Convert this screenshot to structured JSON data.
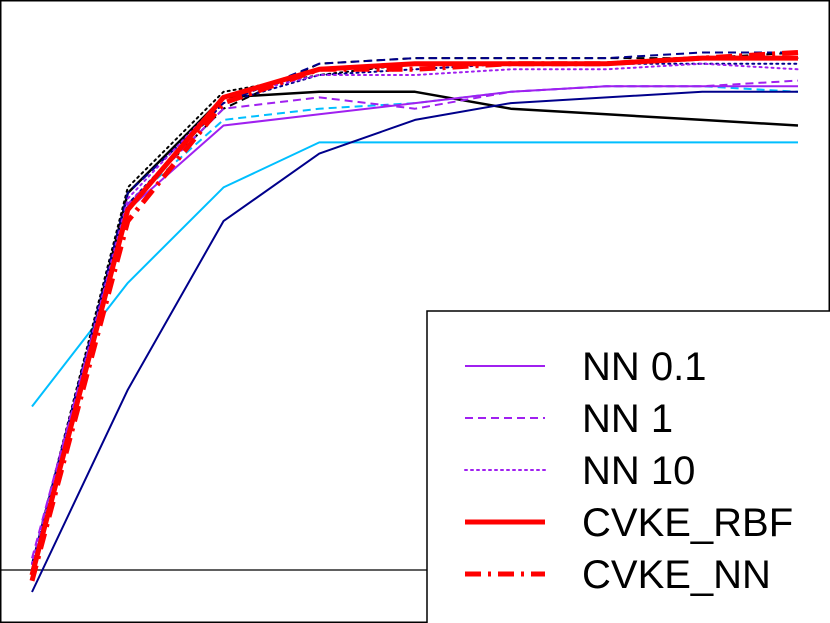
{
  "chart_data": {
    "type": "line",
    "title": "",
    "xlabel": "",
    "ylabel": "",
    "x": [
      1,
      2,
      3,
      4,
      5,
      6,
      7,
      8,
      9
    ],
    "xlim": [
      1,
      9
    ],
    "ylim": [
      0.0,
      1.0
    ],
    "grid": false,
    "legend_position": "bottom-right",
    "series": [
      {
        "name": "NN 0.1",
        "in_legend": true,
        "color": "#a020f0",
        "dash": "solid",
        "width": 2,
        "values": [
          0.04,
          0.68,
          0.83,
          0.85,
          0.87,
          0.89,
          0.9,
          0.9,
          0.9
        ]
      },
      {
        "name": "NN 1",
        "in_legend": true,
        "color": "#a020f0",
        "dash": "dashed",
        "width": 2,
        "values": [
          0.06,
          0.69,
          0.86,
          0.88,
          0.86,
          0.89,
          0.9,
          0.9,
          0.91
        ]
      },
      {
        "name": "NN 10",
        "in_legend": true,
        "color": "#a020f0",
        "dash": "dotted",
        "width": 2,
        "values": [
          0.05,
          0.7,
          0.88,
          0.92,
          0.92,
          0.93,
          0.93,
          0.94,
          0.93
        ]
      },
      {
        "name": "CVKE_RBF",
        "in_legend": true,
        "color": "#ff0000",
        "dash": "solid",
        "width": 5,
        "values": [
          0.03,
          0.68,
          0.88,
          0.93,
          0.94,
          0.94,
          0.94,
          0.95,
          0.95
        ]
      },
      {
        "name": "CVKE_NN",
        "in_legend": true,
        "color": "#ff0000",
        "dash": "dashdot",
        "width": 5,
        "values": [
          0.02,
          0.66,
          0.87,
          0.93,
          0.93,
          0.94,
          0.94,
          0.95,
          0.96
        ]
      },
      {
        "name": "cyan solid",
        "in_legend": false,
        "color": "#00bfff",
        "dash": "solid",
        "width": 2,
        "values": [
          0.33,
          0.55,
          0.72,
          0.8,
          0.8,
          0.8,
          0.8,
          0.8,
          0.8
        ]
      },
      {
        "name": "cyan dashed",
        "in_legend": false,
        "color": "#00bfff",
        "dash": "dashed",
        "width": 2,
        "values": [
          0.04,
          0.69,
          0.84,
          0.86,
          0.87,
          0.89,
          0.9,
          0.9,
          0.89
        ]
      },
      {
        "name": "black solid",
        "in_legend": false,
        "color": "#000000",
        "dash": "solid",
        "width": 2.5,
        "values": [
          0.03,
          0.71,
          0.88,
          0.89,
          0.89,
          0.86,
          0.85,
          0.84,
          0.83
        ]
      },
      {
        "name": "black dashed",
        "in_legend": false,
        "color": "#000000",
        "dash": "dashed",
        "width": 2,
        "values": [
          0.04,
          0.69,
          0.86,
          0.94,
          0.95,
          0.95,
          0.95,
          0.95,
          0.96
        ]
      },
      {
        "name": "black dotted",
        "in_legend": false,
        "color": "#000000",
        "dash": "dotted",
        "width": 2,
        "values": [
          0.05,
          0.72,
          0.89,
          0.92,
          0.94,
          0.94,
          0.94,
          0.95,
          0.95
        ]
      },
      {
        "name": "navy solid",
        "in_legend": false,
        "color": "#00008b",
        "dash": "solid",
        "width": 2,
        "values": [
          0.0,
          0.36,
          0.66,
          0.78,
          0.84,
          0.87,
          0.88,
          0.89,
          0.89
        ]
      },
      {
        "name": "navy dashed",
        "in_legend": false,
        "color": "#00008b",
        "dash": "dashed",
        "width": 2,
        "values": [
          0.05,
          0.71,
          0.87,
          0.94,
          0.95,
          0.95,
          0.95,
          0.96,
          0.96
        ]
      },
      {
        "name": "navy dotted",
        "in_legend": false,
        "color": "#00008b",
        "dash": "dotted",
        "width": 2,
        "values": [
          0.04,
          0.69,
          0.87,
          0.92,
          0.93,
          0.94,
          0.94,
          0.94,
          0.94
        ]
      }
    ],
    "legend_entries": [
      "NN 0.1",
      "NN 1",
      "NN 10",
      "CVKE_RBF",
      "CVKE_NN"
    ]
  }
}
